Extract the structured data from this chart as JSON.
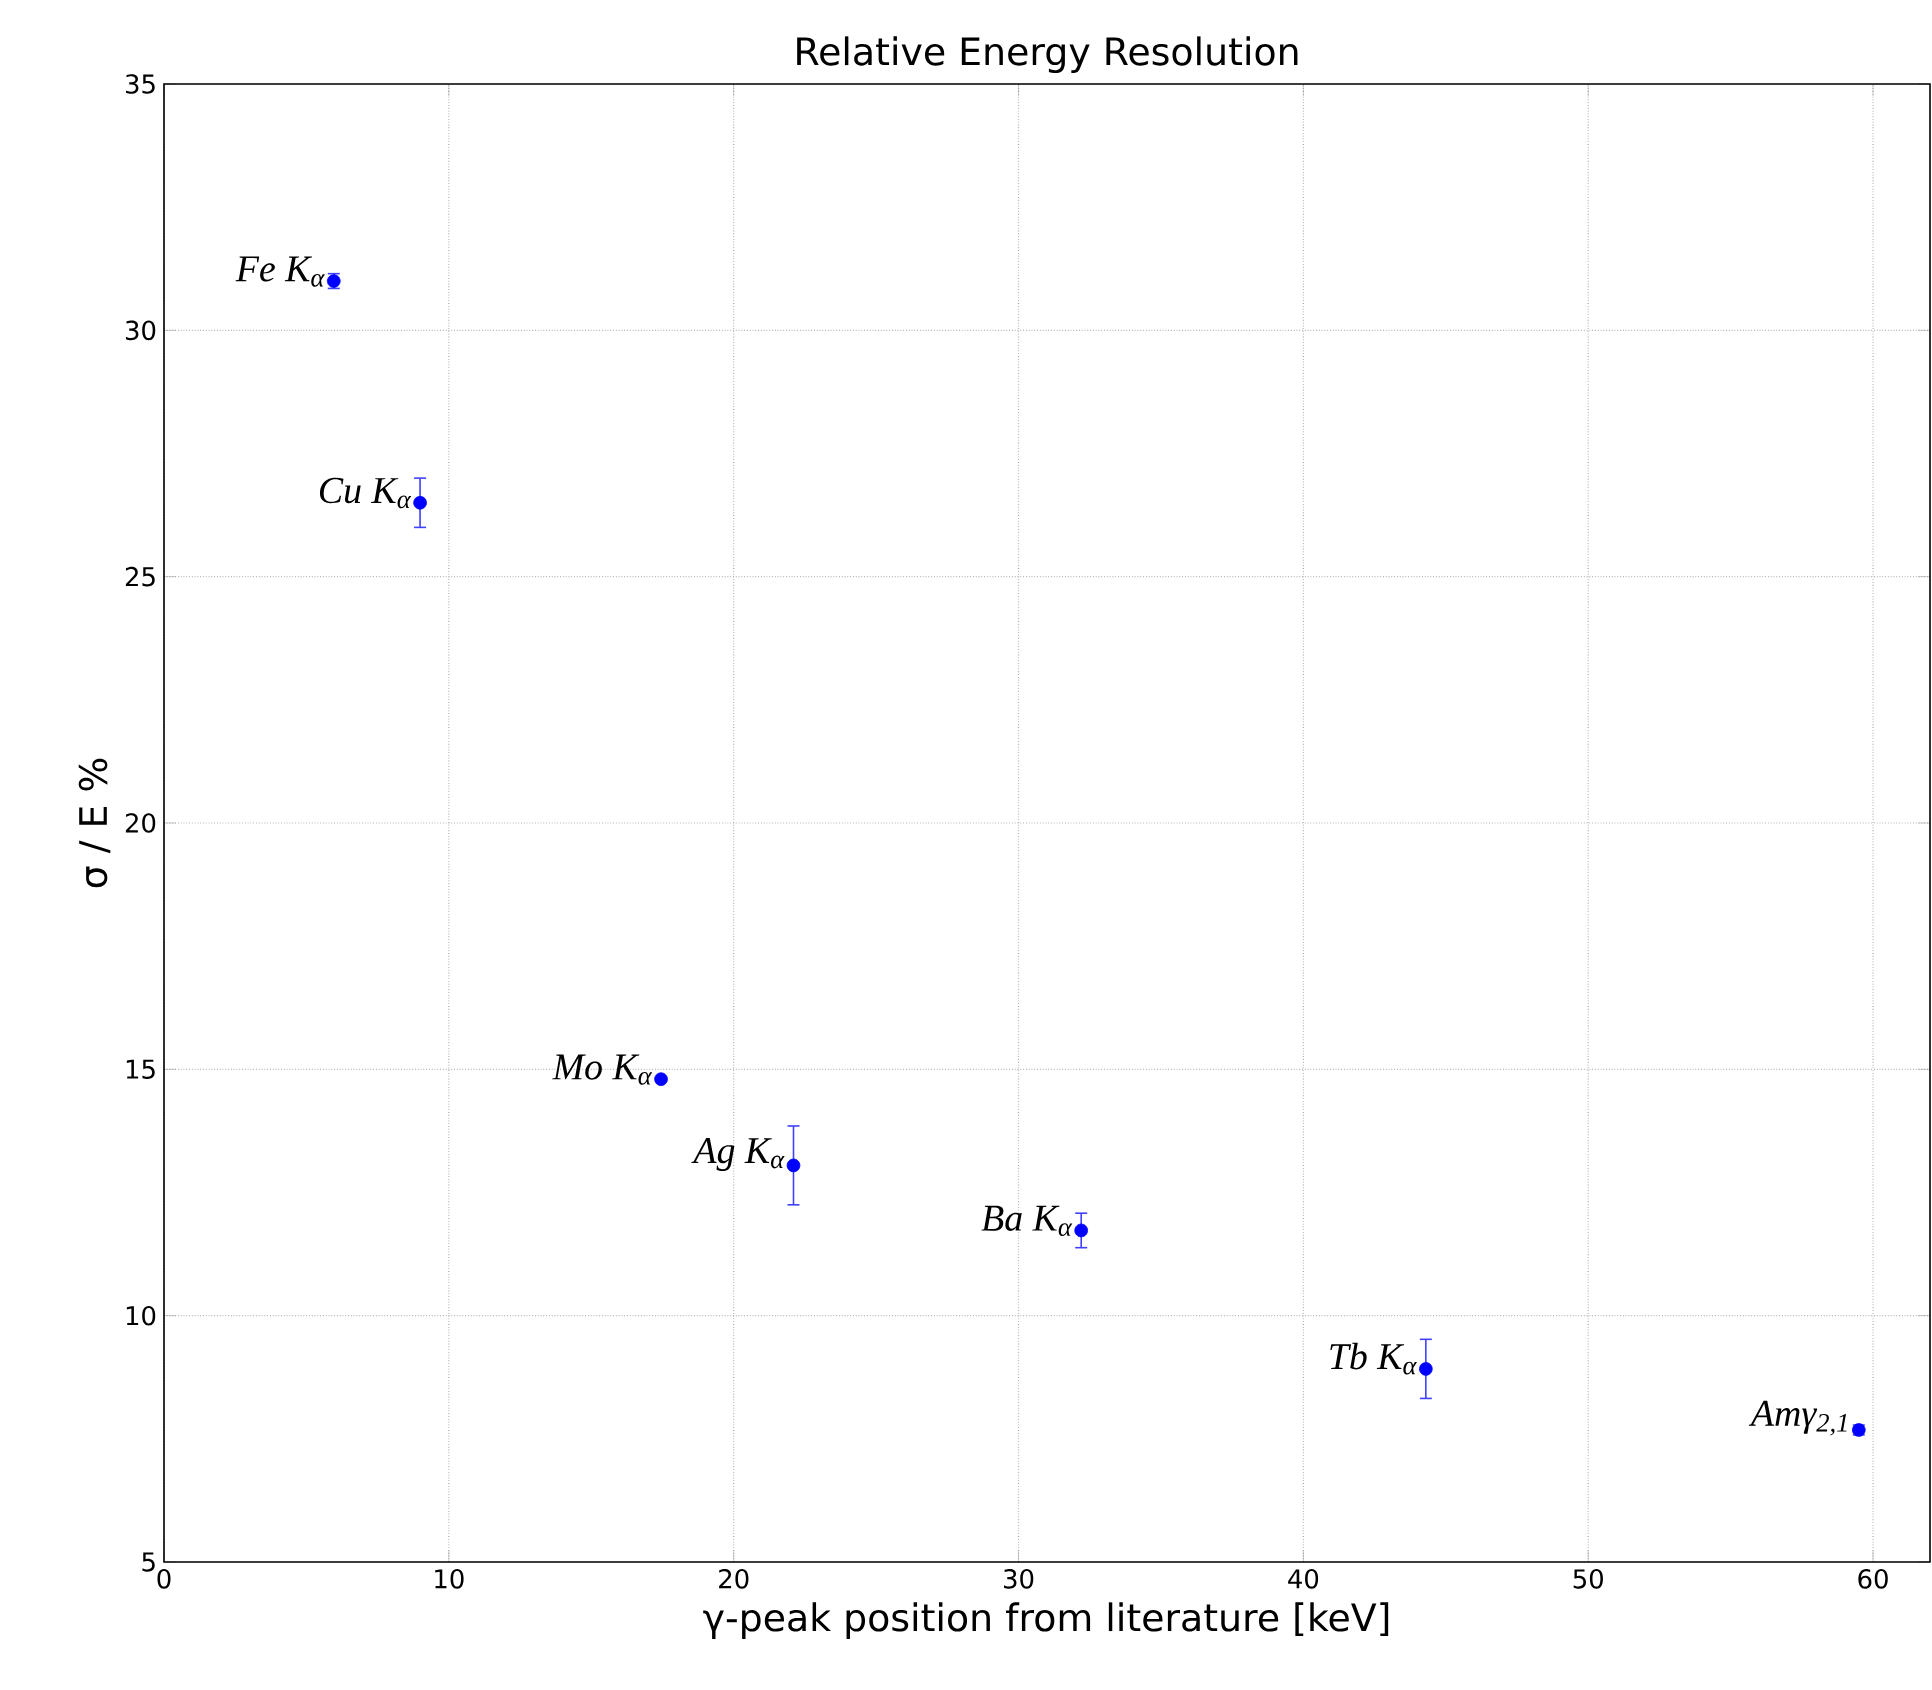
{
  "chart_data": {
    "type": "scatter",
    "title": "Relative Energy Resolution",
    "xlabel": "γ-peak position from literature [keV]",
    "ylabel": "σ / E %",
    "x": [
      5.96,
      8.99,
      17.45,
      22.1,
      32.2,
      44.3,
      59.5
    ],
    "series": [
      {
        "color": "#0000ff",
        "values": [
          31.0,
          26.5,
          14.8,
          13.05,
          11.73,
          8.92,
          7.68
        ],
        "errors": [
          0.15,
          0.5,
          null,
          0.8,
          0.35,
          0.6,
          0.1
        ]
      }
    ],
    "marker": "circle",
    "grid": true,
    "xlim": [
      0,
      62
    ],
    "ylim": [
      5,
      35
    ],
    "xticks": [
      0,
      10,
      20,
      30,
      40,
      50,
      60
    ],
    "yticks": [
      5,
      10,
      15,
      20,
      25,
      30,
      35
    ],
    "annotations": [
      {
        "text": "Fe K$_{α}$",
        "x": 5.96,
        "y": 31.0
      },
      {
        "text": "Cu K$_{α}$",
        "x": 8.99,
        "y": 26.5
      },
      {
        "text": "Mo K$_{α}$",
        "x": 17.45,
        "y": 14.8
      },
      {
        "text": "Ag K$_{α}$",
        "x": 22.1,
        "y": 13.05
      },
      {
        "text": "Ba K$_{α}$",
        "x": 32.2,
        "y": 11.73
      },
      {
        "text": "Tb K$_{α}$",
        "x": 44.3,
        "y": 8.92
      },
      {
        "text": "Amγ$_{2,1}$",
        "x": 59.5,
        "y": 7.68
      }
    ]
  }
}
